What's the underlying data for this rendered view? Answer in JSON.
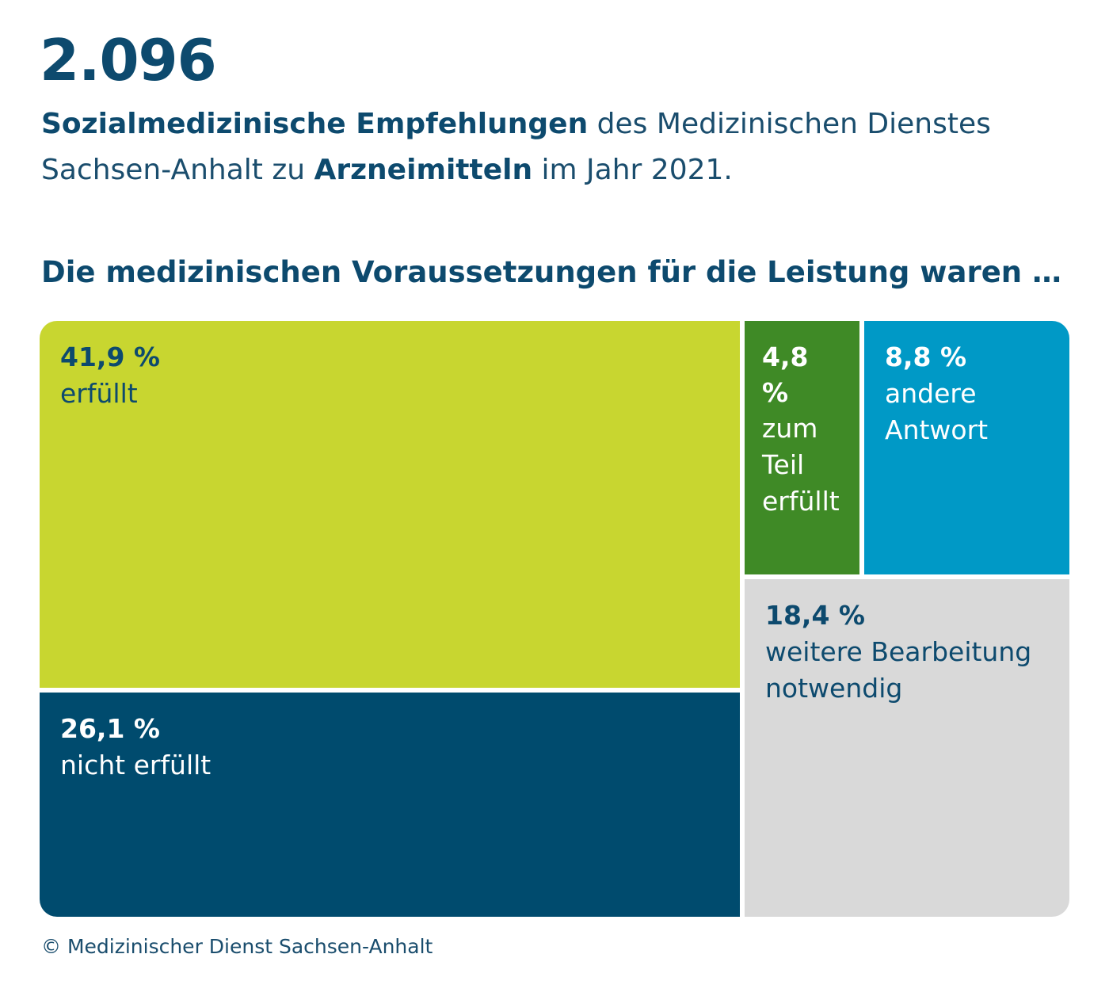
{
  "header": {
    "big_number": "2.096",
    "line1_bold": "Sozialmedizinische Empfehlungen",
    "line1_rest": " des Medizinischen Dienstes",
    "line2_start": "Sachsen-Anhalt zu ",
    "line2_bold": "Arzneimitteln",
    "line2_end": " im Jahr 2021."
  },
  "question": "Die medizinischen Voraussetzungen für die Leistung waren …",
  "chart_data": {
    "type": "treemap",
    "unit": "%",
    "items": [
      {
        "label": "erfüllt",
        "value": 41.9,
        "display": "41,9 %",
        "color": "#c8d630",
        "text_color": "#0d4a6e"
      },
      {
        "label": "nicht erfüllt",
        "value": 26.1,
        "display": "26,1 %",
        "color": "#004b6e",
        "text_color": "#ffffff"
      },
      {
        "label": "zum\nTeil\nerfüllt",
        "value": 4.8,
        "display": "4,8 %",
        "color": "#3f8a26",
        "text_color": "#ffffff"
      },
      {
        "label": "andere\nAntwort",
        "value": 8.8,
        "display": "8,8 %",
        "color": "#0099c6",
        "text_color": "#ffffff"
      },
      {
        "label": "weitere Bearbeitung\nnotwendig",
        "value": 18.4,
        "display": "18,4 %",
        "color": "#d9d9d9",
        "text_color": "#0d4a6e"
      }
    ]
  },
  "footer": "© Medizinischer Dienst Sachsen-Anhalt"
}
